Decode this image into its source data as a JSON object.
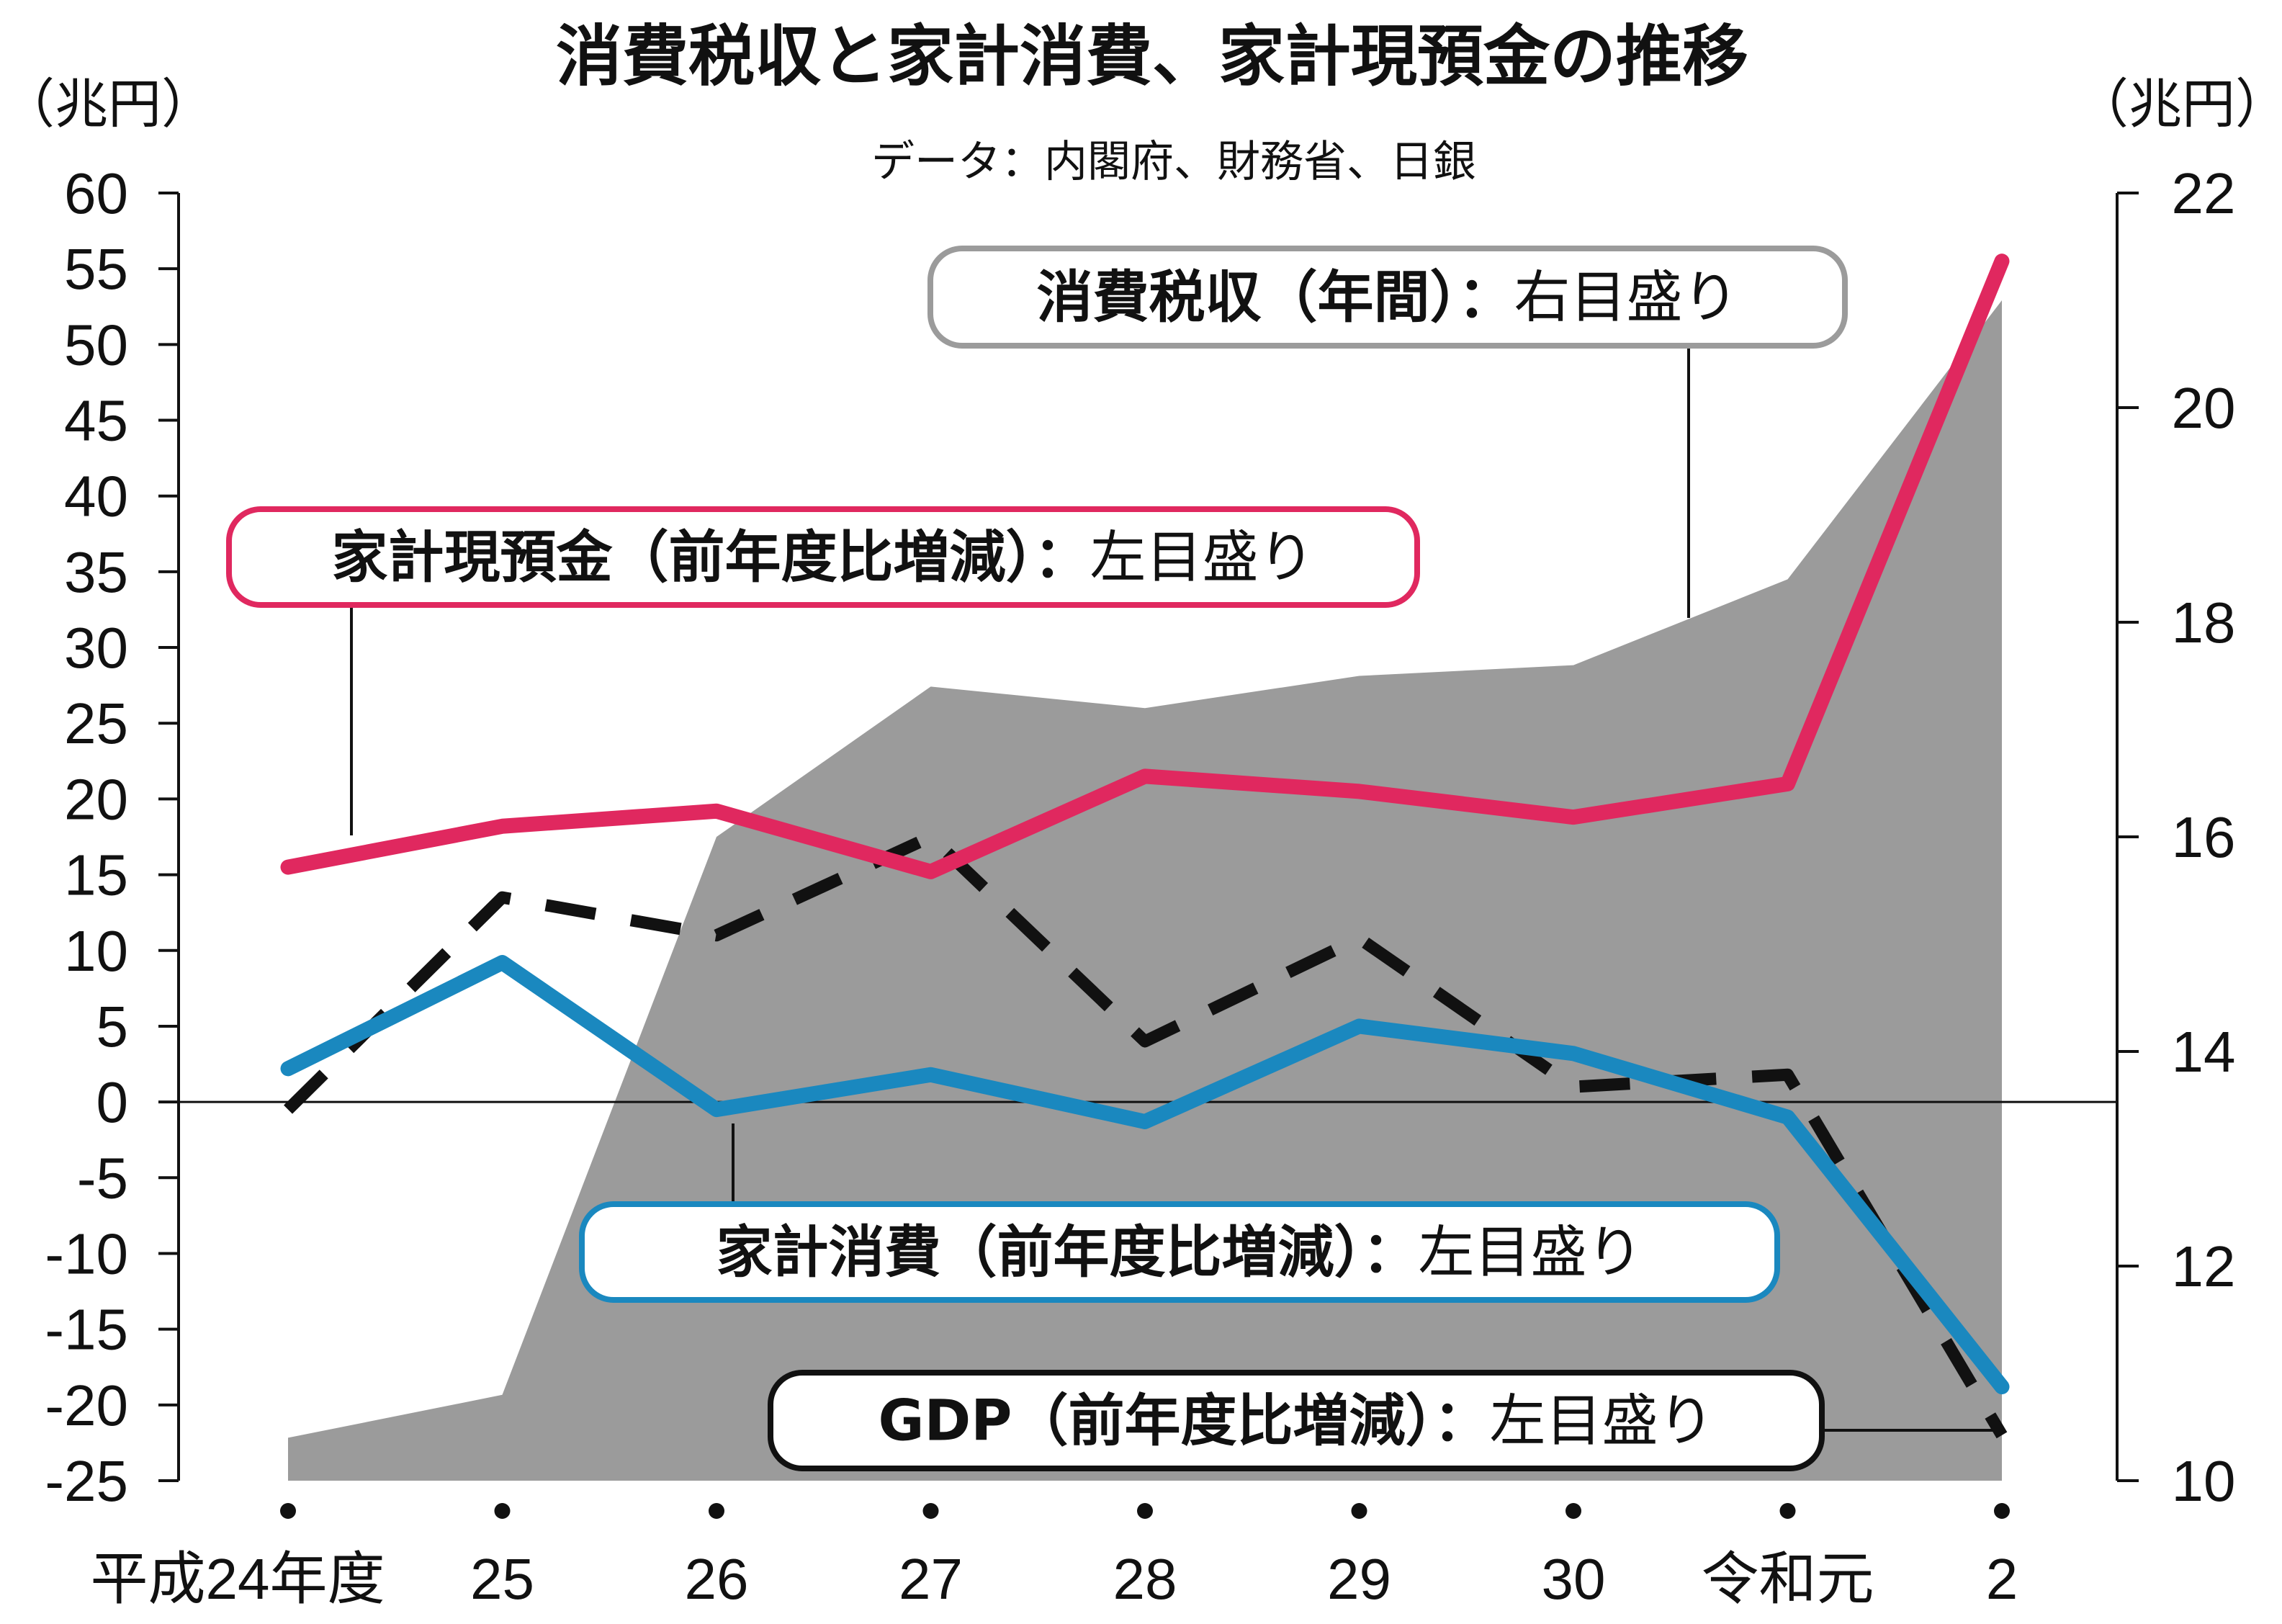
{
  "title": "消費税収と家計消費、家計現預金の推移",
  "source": "データ：内閣府、財務省、日銀",
  "left_unit": "（兆円）",
  "right_unit": "（兆円）",
  "colors": {
    "tax": "#9b9b9b",
    "deposits": "#e0285f",
    "consumption": "#1a88bf",
    "gdp": "#111111",
    "tax_label_border": "#9b9b9b"
  },
  "labels": {
    "tax": {
      "bold": "消費税収（年間）",
      "sep": "：",
      "scale": "右目盛り"
    },
    "deposits": {
      "bold": "家計現預金（前年度比増減）",
      "sep": "：",
      "scale": "左目盛り"
    },
    "consumption": {
      "bold": "家計消費（前年度比増減）",
      "sep": "：",
      "scale": "左目盛り"
    },
    "gdp": {
      "bold": "GDP（前年度比増減）",
      "sep": "：",
      "scale": "左目盛り"
    }
  },
  "chart_data": {
    "type": "line",
    "categories": [
      "平成24年度",
      "25",
      "26",
      "27",
      "28",
      "29",
      "30",
      "令和元",
      "2"
    ],
    "left_axis": {
      "ticks": [
        "60",
        "55",
        "50",
        "45",
        "40",
        "35",
        "30",
        "25",
        "20",
        "15",
        "10",
        "5",
        "0",
        "-5",
        "-10",
        "-15",
        "-20",
        "-25"
      ],
      "ylim": [
        -25,
        60
      ]
    },
    "right_axis": {
      "ticks": [
        "22",
        "20",
        "18",
        "16",
        "14",
        "12",
        "10"
      ],
      "ylim": [
        10,
        22
      ]
    },
    "series": [
      {
        "name": "消費税収（年間）",
        "type": "area",
        "axis": "right",
        "values": [
          10.4,
          10.8,
          16.0,
          17.4,
          17.2,
          17.5,
          17.6,
          18.4,
          21.0
        ]
      },
      {
        "name": "家計現預金（前年度比増減）",
        "type": "line",
        "axis": "left",
        "values": [
          15.5,
          18.2,
          19.2,
          15.2,
          21.5,
          20.5,
          18.8,
          21.0,
          55.5
        ]
      },
      {
        "name": "家計消費（前年度比増減）",
        "type": "line",
        "axis": "left",
        "values": [
          2.2,
          9.2,
          -0.5,
          1.8,
          -1.3,
          5.0,
          3.2,
          -1.0,
          -18.8
        ]
      },
      {
        "name": "GDP（前年度比増減）",
        "type": "dashed-line",
        "axis": "left",
        "values": [
          -0.5,
          13.5,
          11.0,
          17.5,
          4.0,
          10.8,
          1.0,
          1.8,
          -22.0
        ]
      }
    ]
  }
}
